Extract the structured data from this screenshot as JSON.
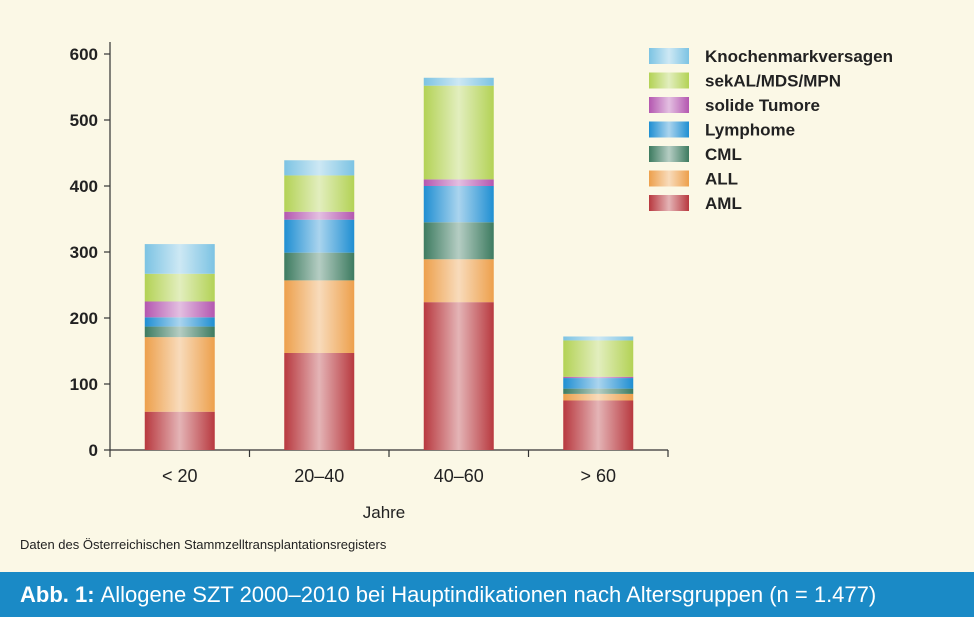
{
  "figure": {
    "source_note": "Daten des Österreichischen Stammzelltransplantationsregisters",
    "caption_prefix": "Abb. 1:",
    "caption_text": "Allogene SZT 2000–2010 bei Hauptindikationen nach Altersgruppen (n = 1.477)"
  },
  "chart_data": {
    "type": "bar",
    "stacked": true,
    "xlabel": "Jahre",
    "ylabel": "",
    "ylim": [
      0,
      600
    ],
    "yticks": [
      0,
      100,
      200,
      300,
      400,
      500,
      600
    ],
    "categories": [
      "< 20",
      "20–40",
      "40–60",
      "> 60"
    ],
    "legend_position": "top-right",
    "grid": false,
    "series": [
      {
        "name": "AML",
        "color": "#b8393f",
        "values": [
          58,
          147,
          224,
          75
        ]
      },
      {
        "name": "ALL",
        "color": "#eda04c",
        "values": [
          113,
          110,
          65,
          10
        ]
      },
      {
        "name": "CML",
        "color": "#3d7b60",
        "values": [
          16,
          42,
          56,
          8
        ]
      },
      {
        "name": "Lymphome",
        "color": "#1f8fd2",
        "values": [
          14,
          50,
          55,
          16
        ]
      },
      {
        "name": "solide Tumore",
        "color": "#b457b0",
        "values": [
          24,
          12,
          10,
          2
        ]
      },
      {
        "name": "sekAL/MDS/MPN",
        "color": "#b3d255",
        "values": [
          42,
          55,
          142,
          55
        ]
      },
      {
        "name": "Knochenmarkversagen",
        "color": "#7cc3e3",
        "values": [
          45,
          23,
          12,
          6
        ]
      }
    ]
  }
}
